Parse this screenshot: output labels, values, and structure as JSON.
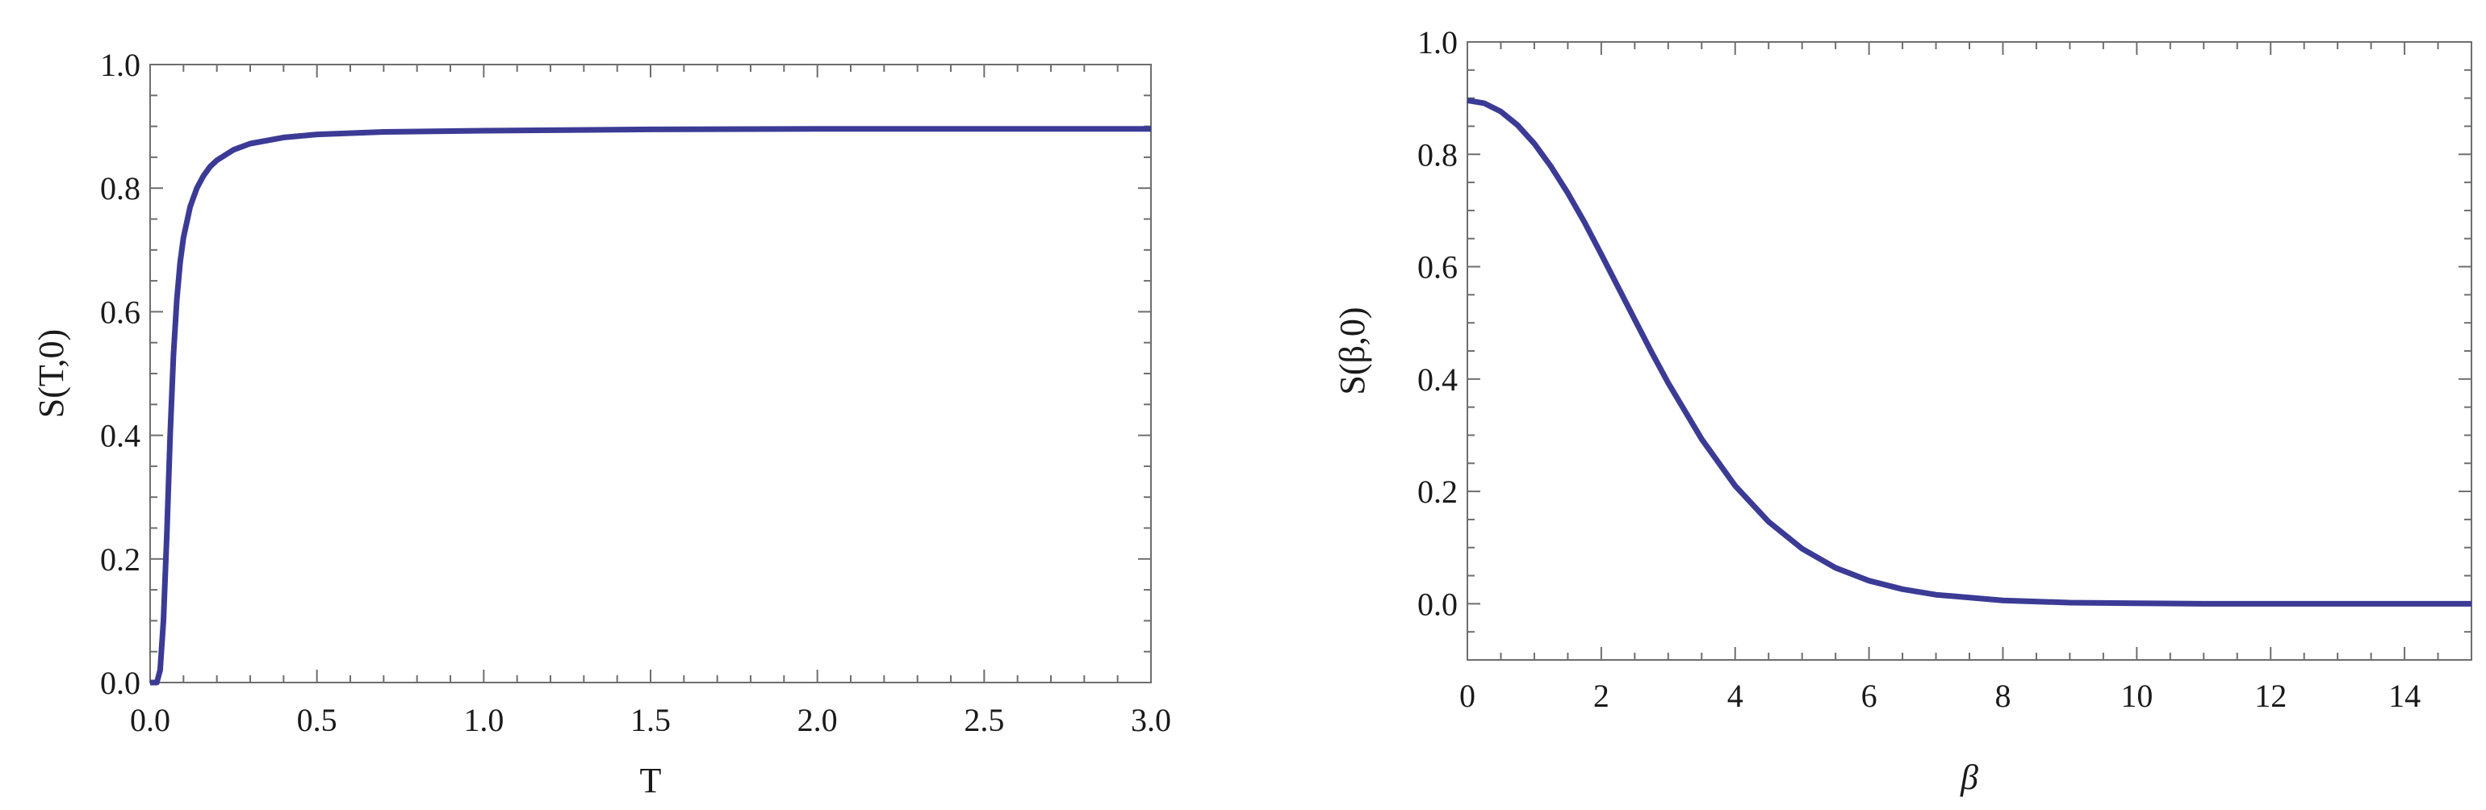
{
  "chart_data": [
    {
      "type": "line",
      "title": "",
      "xlabel": "T",
      "ylabel": "S(T,0)",
      "xlim": [
        0.0,
        3.0
      ],
      "ylim": [
        0.0,
        1.0
      ],
      "xticks": [
        "0.0",
        "0.5",
        "1.0",
        "1.5",
        "2.0",
        "2.5",
        "3.0"
      ],
      "yticks": [
        "0.0",
        "0.2",
        "0.4",
        "0.6",
        "0.8",
        "1.0"
      ],
      "grid": false,
      "series": [
        {
          "color": "#3b3b96",
          "x": [
            0.0,
            0.02,
            0.03,
            0.04,
            0.05,
            0.06,
            0.07,
            0.08,
            0.09,
            0.1,
            0.12,
            0.14,
            0.16,
            0.18,
            0.2,
            0.25,
            0.3,
            0.4,
            0.5,
            0.7,
            1.0,
            1.5,
            2.0,
            2.5,
            3.0
          ],
          "y": [
            0.0,
            0.0,
            0.02,
            0.1,
            0.24,
            0.4,
            0.53,
            0.62,
            0.68,
            0.72,
            0.77,
            0.8,
            0.82,
            0.835,
            0.845,
            0.862,
            0.872,
            0.882,
            0.887,
            0.891,
            0.893,
            0.895,
            0.896,
            0.896,
            0.896
          ]
        }
      ]
    },
    {
      "type": "line",
      "title": "",
      "xlabel": "β",
      "ylabel": "S(β,0)",
      "xlim": [
        0,
        15
      ],
      "ylim": [
        -0.1,
        1.0
      ],
      "xticks": [
        "0",
        "2",
        "4",
        "6",
        "8",
        "10",
        "12",
        "14"
      ],
      "yticks": [
        "0.0",
        "0.2",
        "0.4",
        "0.6",
        "0.8",
        "1.0"
      ],
      "grid": false,
      "series": [
        {
          "color": "#3b3b96",
          "x": [
            0,
            0.25,
            0.5,
            0.75,
            1.0,
            1.25,
            1.5,
            1.75,
            2.0,
            2.25,
            2.5,
            2.75,
            3.0,
            3.5,
            4.0,
            4.5,
            5.0,
            5.5,
            6.0,
            6.5,
            7.0,
            8.0,
            9.0,
            10.0,
            11.0,
            12.0,
            13.0,
            14.0,
            15.0
          ],
          "y": [
            0.896,
            0.891,
            0.876,
            0.852,
            0.819,
            0.778,
            0.731,
            0.679,
            0.622,
            0.564,
            0.506,
            0.448,
            0.393,
            0.293,
            0.21,
            0.146,
            0.098,
            0.064,
            0.041,
            0.026,
            0.016,
            0.006,
            0.002,
            0.001,
            0.0,
            0.0,
            0.0,
            0.0,
            0.0
          ]
        }
      ]
    }
  ]
}
